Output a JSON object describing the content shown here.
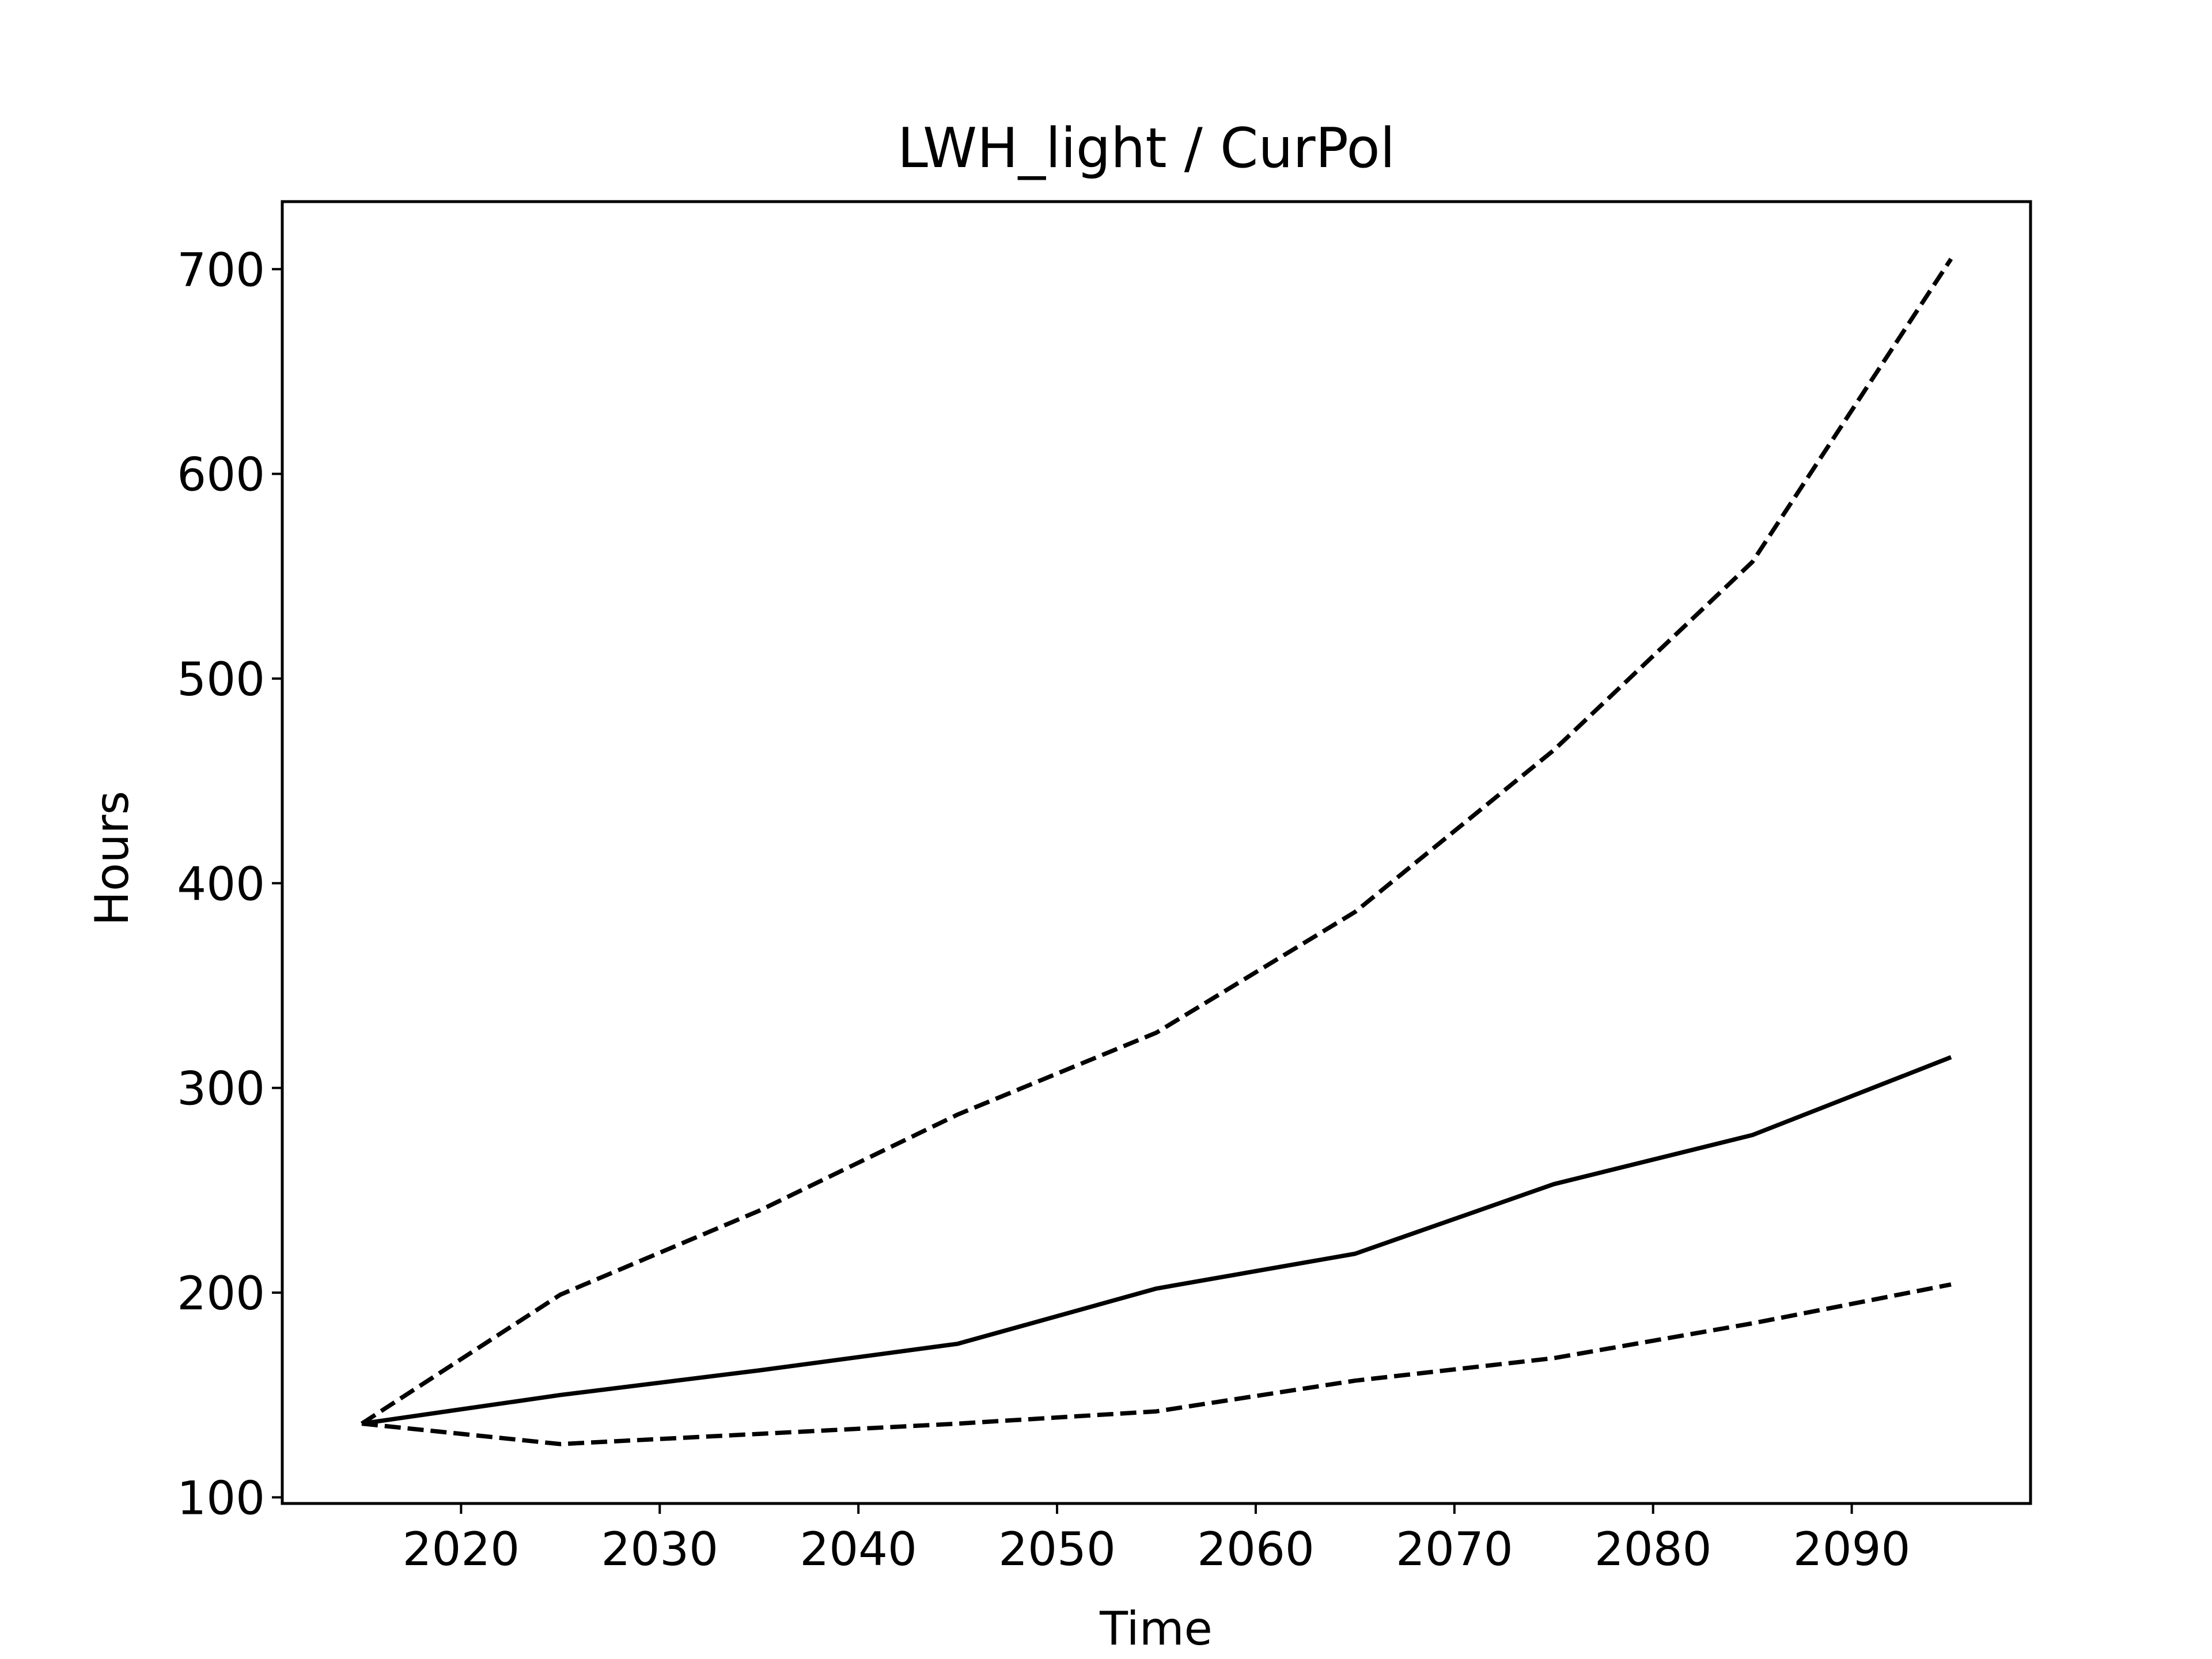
{
  "chart_data": {
    "type": "line",
    "title": "LWH_light / CurPol",
    "xlabel": "Time",
    "ylabel": "Hours",
    "xlim": [
      2011,
      2099
    ],
    "ylim": [
      97,
      733
    ],
    "xticks": [
      2020,
      2030,
      2040,
      2050,
      2060,
      2070,
      2080,
      2090
    ],
    "yticks": [
      100,
      200,
      300,
      400,
      500,
      600,
      700
    ],
    "grid": false,
    "legend": "none",
    "x": [
      2015,
      2025,
      2035,
      2045,
      2055,
      2065,
      2075,
      2085,
      2095
    ],
    "series": [
      {
        "style": "solid",
        "color": "#000000",
        "values": [
          136,
          150,
          162,
          175,
          202,
          219,
          253,
          277,
          315
        ]
      },
      {
        "style": "dashed",
        "color": "#000000",
        "values": [
          136,
          199,
          240,
          287,
          327,
          386,
          465,
          557,
          705
        ]
      },
      {
        "style": "dashed",
        "color": "#000000",
        "values": [
          136,
          126,
          131,
          136,
          142,
          157,
          168,
          185,
          204
        ]
      }
    ]
  }
}
